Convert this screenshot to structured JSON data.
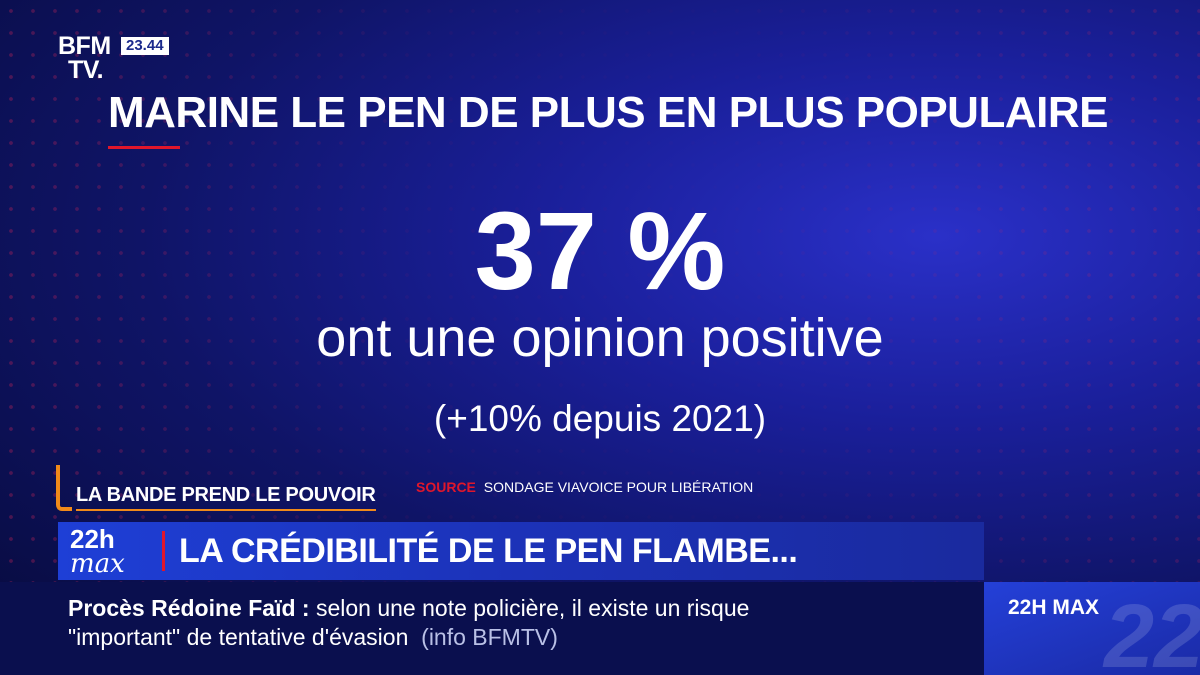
{
  "channel": {
    "logo_line1": "BFM",
    "logo_line2": "TV.",
    "clock": "23.44"
  },
  "slide": {
    "title": "MARINE LE PEN DE PLUS EN PLUS POPULAIRE",
    "big_value": "37 %",
    "subtitle": "ont une opinion positive",
    "change": "(+10% depuis 2021)"
  },
  "show": {
    "name": "LA BANDE PREND LE POUVOIR",
    "source_key": "SOURCE",
    "source_text": "SONDAGE VIAVOICE POUR LIBÉRATION"
  },
  "banner": {
    "program_top": "22h",
    "program_bottom": "max",
    "headline": "LA CRÉDIBILITÉ DE LE PEN FLAMBE..."
  },
  "ticker": {
    "topic": "Procès Rédoine Faïd",
    "separator": " : ",
    "line1_rest": "selon une note policière, il existe un risque",
    "line2": "\"important\" de tentative d'évasion",
    "credit": "(info BFMTV)"
  },
  "corner": {
    "label": "22H MAX",
    "ghost": "22"
  },
  "colors": {
    "accent_red": "#e0162b",
    "accent_orange": "#f08a1a",
    "background_blue": "#1a1f9a"
  }
}
